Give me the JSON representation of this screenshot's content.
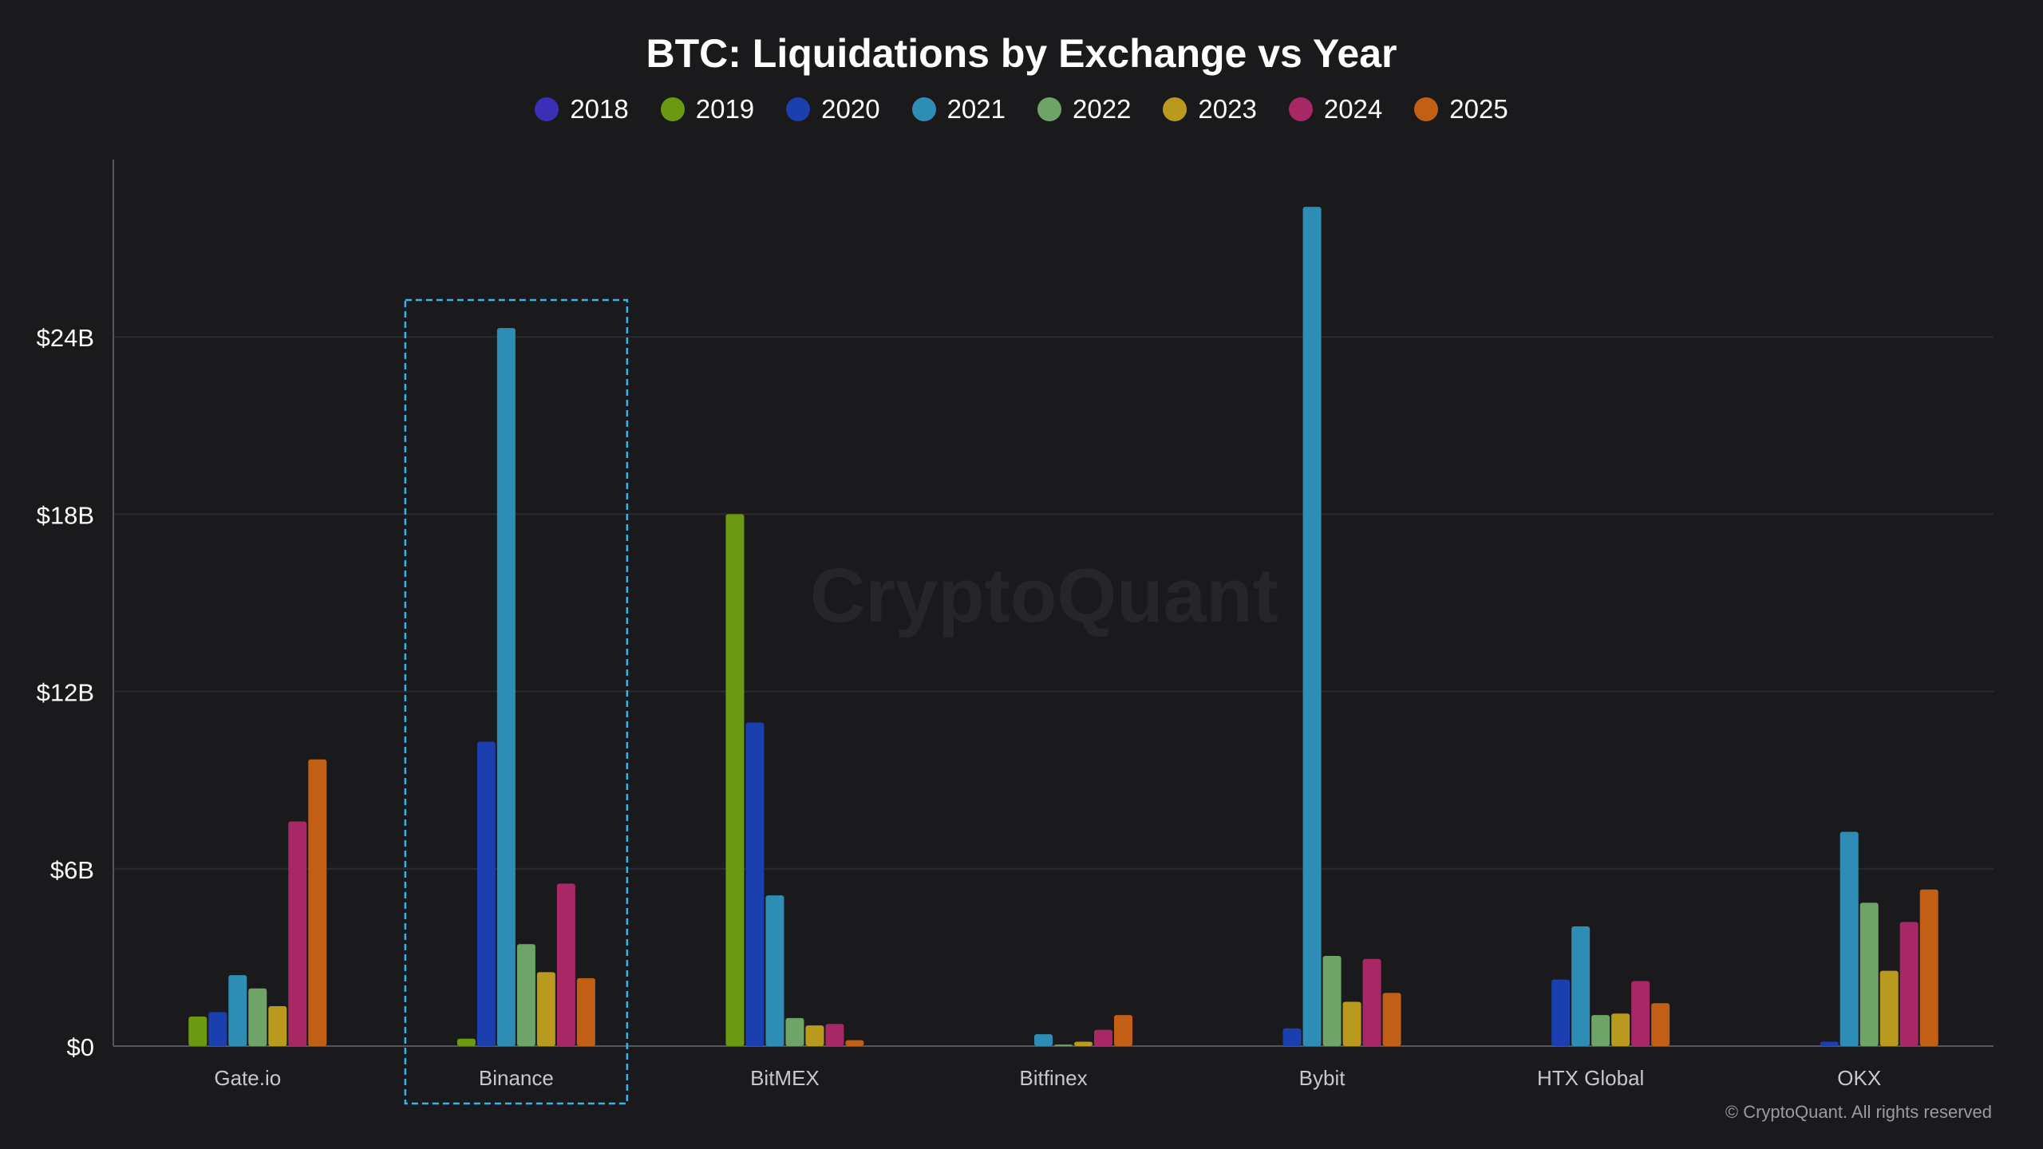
{
  "chart_data": {
    "type": "bar",
    "title": "BTC: Liquidations by Exchange vs Year",
    "categories": [
      "Gate.io",
      "Binance",
      "BitMEX",
      "Bitfinex",
      "Bybit",
      "HTX Global",
      "OKX"
    ],
    "yticks": [
      "$0",
      "$6B",
      "$12B",
      "$18B",
      "$24B"
    ],
    "ylim": [
      0,
      30
    ],
    "grid": true,
    "legend_position": "top",
    "highlight_category": "Binance",
    "series": [
      {
        "name": "2018",
        "color": "#3b2fb8",
        "values": [
          0,
          0,
          0,
          0,
          0,
          0,
          0
        ]
      },
      {
        "name": "2019",
        "color": "#6b9a12",
        "values": [
          1.0,
          0.25,
          18.0,
          0,
          0,
          0,
          0
        ]
      },
      {
        "name": "2020",
        "color": "#1b3fae",
        "values": [
          1.15,
          10.3,
          10.95,
          0,
          0.6,
          2.25,
          0.15
        ]
      },
      {
        "name": "2021",
        "color": "#2d8db4",
        "values": [
          2.4,
          24.3,
          5.1,
          0.4,
          28.4,
          4.05,
          7.25
        ]
      },
      {
        "name": "2022",
        "color": "#6fa468",
        "values": [
          1.95,
          3.45,
          0.95,
          0.05,
          3.05,
          1.05,
          4.85
        ]
      },
      {
        "name": "2023",
        "color": "#b99a1f",
        "values": [
          1.35,
          2.5,
          0.7,
          0.15,
          1.5,
          1.1,
          2.55
        ]
      },
      {
        "name": "2024",
        "color": "#a82765",
        "values": [
          7.6,
          5.5,
          0.75,
          0.55,
          2.95,
          2.2,
          4.2
        ]
      },
      {
        "name": "2025",
        "color": "#c15f16",
        "values": [
          9.7,
          2.3,
          0.2,
          1.05,
          1.8,
          1.45,
          5.3
        ]
      }
    ]
  },
  "watermark": "CryptoQuant",
  "copyright": "© CryptoQuant. All rights reserved"
}
